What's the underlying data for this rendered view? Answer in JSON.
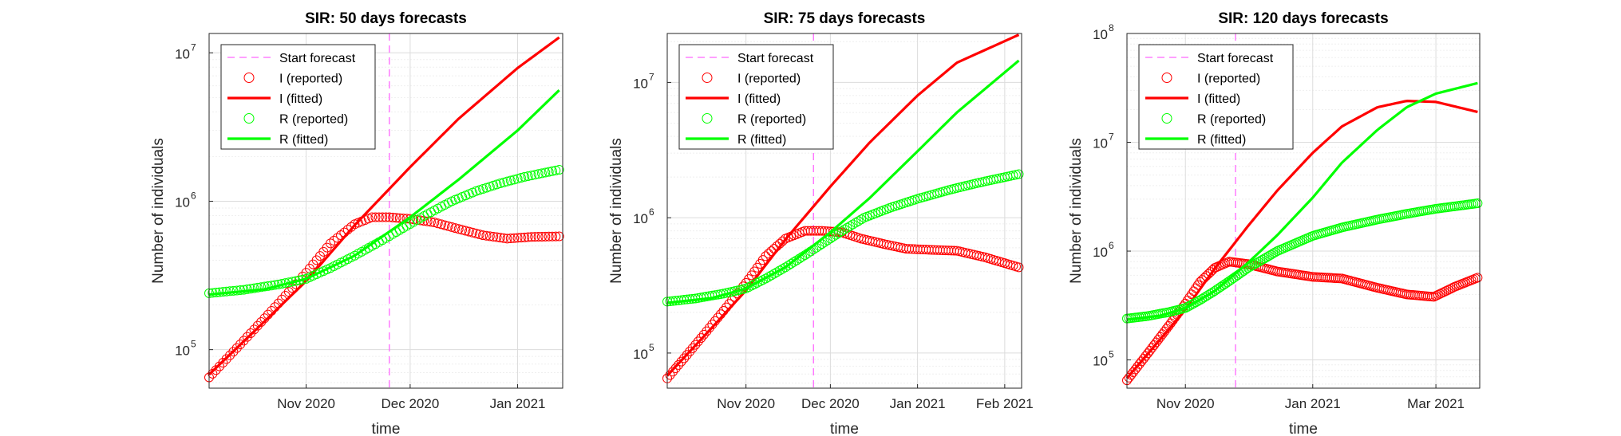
{
  "colors": {
    "infected": "#ff0000",
    "recovered": "#00ff00",
    "forecast_line": "#ff66ff",
    "axis": "#262626",
    "grid": "#d9d9d9"
  },
  "chart_data": [
    {
      "type": "line",
      "title": "SIR: 50 days forecasts",
      "xlabel": "time",
      "ylabel": "Number of individuals",
      "y_scale": "log",
      "ylim": [
        55000,
        13500000
      ],
      "xlim": [
        "2020-10-04",
        "2021-01-14"
      ],
      "grid": true,
      "legend_position": "top-left",
      "start_forecast": "2020-11-25",
      "x_ticks": [
        {
          "label": "Nov 2020",
          "date": "2020-11-01"
        },
        {
          "label": "Dec 2020",
          "date": "2020-12-01"
        },
        {
          "label": "Jan 2021",
          "date": "2021-01-01"
        }
      ],
      "y_ticks": [
        {
          "label": "10",
          "exp": "5",
          "value": 100000
        },
        {
          "label": "10",
          "exp": "6",
          "value": 1000000
        },
        {
          "label": "10",
          "exp": "7",
          "value": 10000000
        }
      ],
      "legend": [
        {
          "label": "Start forecast",
          "style": "dashed"
        },
        {
          "label": "I (reported)",
          "style": "marker"
        },
        {
          "label": "I (fitted)",
          "style": "line"
        },
        {
          "label": "R (reported)",
          "style": "marker"
        },
        {
          "label": "R (fitted)",
          "style": "line"
        }
      ],
      "series": [
        {
          "name": "I (reported)",
          "style": "marker",
          "color": "#ff0000",
          "x": [
            "2020-10-04",
            "2020-10-14",
            "2020-10-24",
            "2020-11-01",
            "2020-11-08",
            "2020-11-15",
            "2020-11-20",
            "2020-11-25",
            "2020-12-01",
            "2020-12-08",
            "2020-12-15",
            "2020-12-22",
            "2020-12-29",
            "2021-01-05",
            "2021-01-13"
          ],
          "y": [
            65000,
            115000,
            205000,
            330000,
            520000,
            700000,
            780000,
            780000,
            760000,
            720000,
            650000,
            590000,
            560000,
            575000,
            580000
          ]
        },
        {
          "name": "I (fitted)",
          "style": "line",
          "color": "#ff0000",
          "x": [
            "2020-10-04",
            "2020-10-20",
            "2020-11-01",
            "2020-11-15",
            "2020-12-01",
            "2020-12-15",
            "2021-01-01",
            "2021-01-13"
          ],
          "y": [
            68000,
            155000,
            290000,
            690000,
            1700000,
            3600000,
            7900000,
            12700000
          ]
        },
        {
          "name": "R (reported)",
          "style": "marker",
          "color": "#00ff00",
          "x": [
            "2020-10-04",
            "2020-10-14",
            "2020-10-24",
            "2020-11-01",
            "2020-11-08",
            "2020-11-15",
            "2020-11-22",
            "2020-11-29",
            "2020-12-06",
            "2020-12-13",
            "2020-12-20",
            "2020-12-27",
            "2021-01-03",
            "2021-01-13"
          ],
          "y": [
            240000,
            253000,
            275000,
            300000,
            355000,
            430000,
            530000,
            660000,
            820000,
            1000000,
            1170000,
            1320000,
            1460000,
            1630000
          ]
        },
        {
          "name": "R (fitted)",
          "style": "line",
          "color": "#00ff00",
          "x": [
            "2020-10-04",
            "2020-10-20",
            "2020-11-01",
            "2020-11-15",
            "2020-12-01",
            "2020-12-15",
            "2021-01-01",
            "2021-01-13"
          ],
          "y": [
            235000,
            255000,
            300000,
            430000,
            780000,
            1400000,
            3000000,
            5600000
          ]
        }
      ]
    },
    {
      "type": "line",
      "title": "SIR: 75 days forecasts",
      "xlabel": "time",
      "ylabel": "Number of individuals",
      "y_scale": "log",
      "ylim": [
        55000,
        23000000
      ],
      "xlim": [
        "2020-10-04",
        "2021-02-07"
      ],
      "grid": true,
      "legend_position": "top-left",
      "start_forecast": "2020-11-25",
      "x_ticks": [
        {
          "label": "Nov 2020",
          "date": "2020-11-01"
        },
        {
          "label": "Dec 2020",
          "date": "2020-12-01"
        },
        {
          "label": "Jan 2021",
          "date": "2021-01-01"
        },
        {
          "label": "Feb 2021",
          "date": "2021-02-01"
        }
      ],
      "y_ticks": [
        {
          "label": "10",
          "exp": "5",
          "value": 100000
        },
        {
          "label": "10",
          "exp": "6",
          "value": 1000000
        },
        {
          "label": "10",
          "exp": "7",
          "value": 10000000
        }
      ],
      "legend": [
        {
          "label": "Start forecast",
          "style": "dashed"
        },
        {
          "label": "I (reported)",
          "style": "marker"
        },
        {
          "label": "I (fitted)",
          "style": "line"
        },
        {
          "label": "R (reported)",
          "style": "marker"
        },
        {
          "label": "R (fitted)",
          "style": "line"
        }
      ],
      "series": [
        {
          "name": "I (reported)",
          "style": "marker",
          "color": "#ff0000",
          "x": [
            "2020-10-04",
            "2020-10-14",
            "2020-10-24",
            "2020-11-01",
            "2020-11-08",
            "2020-11-15",
            "2020-11-22",
            "2020-11-28",
            "2020-12-05",
            "2020-12-12",
            "2020-12-20",
            "2020-12-28",
            "2021-01-05",
            "2021-01-15",
            "2021-01-25",
            "2021-02-06"
          ],
          "y": [
            65000,
            115000,
            205000,
            330000,
            520000,
            700000,
            800000,
            800000,
            780000,
            700000,
            640000,
            590000,
            580000,
            570000,
            510000,
            430000
          ]
        },
        {
          "name": "I (fitted)",
          "style": "line",
          "color": "#ff0000",
          "x": [
            "2020-10-04",
            "2020-10-20",
            "2020-11-01",
            "2020-11-15",
            "2020-12-01",
            "2020-12-15",
            "2021-01-01",
            "2021-01-15",
            "2021-02-06"
          ],
          "y": [
            68000,
            155000,
            290000,
            690000,
            1700000,
            3600000,
            8000000,
            14000000,
            22500000
          ]
        },
        {
          "name": "R (reported)",
          "style": "marker",
          "color": "#00ff00",
          "x": [
            "2020-10-04",
            "2020-10-14",
            "2020-10-24",
            "2020-11-01",
            "2020-11-08",
            "2020-11-15",
            "2020-11-22",
            "2020-11-29",
            "2020-12-06",
            "2020-12-13",
            "2020-12-22",
            "2021-01-01",
            "2021-01-12",
            "2021-01-22",
            "2021-02-06"
          ],
          "y": [
            240000,
            253000,
            275000,
            300000,
            355000,
            430000,
            530000,
            660000,
            820000,
            1000000,
            1180000,
            1380000,
            1600000,
            1800000,
            2100000
          ]
        },
        {
          "name": "R (fitted)",
          "style": "line",
          "color": "#00ff00",
          "x": [
            "2020-10-04",
            "2020-10-20",
            "2020-11-01",
            "2020-11-15",
            "2020-12-01",
            "2020-12-15",
            "2021-01-01",
            "2021-01-15",
            "2021-02-06"
          ],
          "y": [
            235000,
            255000,
            300000,
            430000,
            780000,
            1400000,
            3100000,
            6000000,
            14500000
          ]
        }
      ]
    },
    {
      "type": "line",
      "title": "SIR: 120 days forecasts",
      "xlabel": "time",
      "ylabel": "Number of individuals",
      "y_scale": "log",
      "ylim": [
        55000,
        100000000
      ],
      "xlim": [
        "2020-10-04",
        "2021-03-22"
      ],
      "grid": true,
      "legend_position": "top-left",
      "start_forecast": "2020-11-25",
      "x_ticks": [
        {
          "label": "Nov 2020",
          "date": "2020-11-01"
        },
        {
          "label": "Jan 2021",
          "date": "2021-01-01"
        },
        {
          "label": "Mar 2021",
          "date": "2021-03-01"
        }
      ],
      "y_ticks": [
        {
          "label": "10",
          "exp": "5",
          "value": 100000
        },
        {
          "label": "10",
          "exp": "6",
          "value": 1000000
        },
        {
          "label": "10",
          "exp": "7",
          "value": 10000000
        },
        {
          "label": "10",
          "exp": "8",
          "value": 100000000
        }
      ],
      "legend": [
        {
          "label": "Start forecast",
          "style": "dashed"
        },
        {
          "label": "I (reported)",
          "style": "marker"
        },
        {
          "label": "I (fitted)",
          "style": "line"
        },
        {
          "label": "R (reported)",
          "style": "marker"
        },
        {
          "label": "R (fitted)",
          "style": "line"
        }
      ],
      "series": [
        {
          "name": "I (reported)",
          "style": "marker",
          "color": "#ff0000",
          "x": [
            "2020-10-04",
            "2020-10-14",
            "2020-10-24",
            "2020-11-01",
            "2020-11-08",
            "2020-11-15",
            "2020-11-22",
            "2020-12-01",
            "2020-12-15",
            "2021-01-01",
            "2021-01-15",
            "2021-02-01",
            "2021-02-15",
            "2021-02-28",
            "2021-03-10",
            "2021-03-21"
          ],
          "y": [
            65000,
            115000,
            205000,
            330000,
            520000,
            700000,
            800000,
            760000,
            650000,
            580000,
            560000,
            460000,
            400000,
            380000,
            470000,
            570000
          ]
        },
        {
          "name": "I (fitted)",
          "style": "line",
          "color": "#ff0000",
          "x": [
            "2020-10-04",
            "2020-10-20",
            "2020-11-01",
            "2020-11-15",
            "2020-12-01",
            "2020-12-15",
            "2021-01-01",
            "2021-01-15",
            "2021-02-01",
            "2021-02-15",
            "2021-03-01",
            "2021-03-21"
          ],
          "y": [
            68000,
            155000,
            290000,
            690000,
            1700000,
            3600000,
            8000000,
            14000000,
            21000000,
            24000000,
            23500000,
            19000000
          ]
        },
        {
          "name": "R (reported)",
          "style": "marker",
          "color": "#00ff00",
          "x": [
            "2020-10-04",
            "2020-10-14",
            "2020-10-24",
            "2020-11-01",
            "2020-11-08",
            "2020-11-15",
            "2020-11-22",
            "2020-12-01",
            "2020-12-15",
            "2021-01-01",
            "2021-01-15",
            "2021-02-01",
            "2021-02-15",
            "2021-03-01",
            "2021-03-21"
          ],
          "y": [
            240000,
            253000,
            275000,
            300000,
            355000,
            430000,
            530000,
            700000,
            1000000,
            1380000,
            1650000,
            1950000,
            2200000,
            2450000,
            2750000
          ]
        },
        {
          "name": "R (fitted)",
          "style": "line",
          "color": "#00ff00",
          "x": [
            "2020-10-04",
            "2020-10-20",
            "2020-11-01",
            "2020-11-15",
            "2020-12-01",
            "2020-12-15",
            "2021-01-01",
            "2021-01-15",
            "2021-02-01",
            "2021-02-15",
            "2021-03-01",
            "2021-03-21"
          ],
          "y": [
            235000,
            255000,
            300000,
            430000,
            780000,
            1400000,
            3100000,
            6500000,
            13000000,
            21000000,
            28000000,
            35000000
          ]
        }
      ]
    }
  ]
}
